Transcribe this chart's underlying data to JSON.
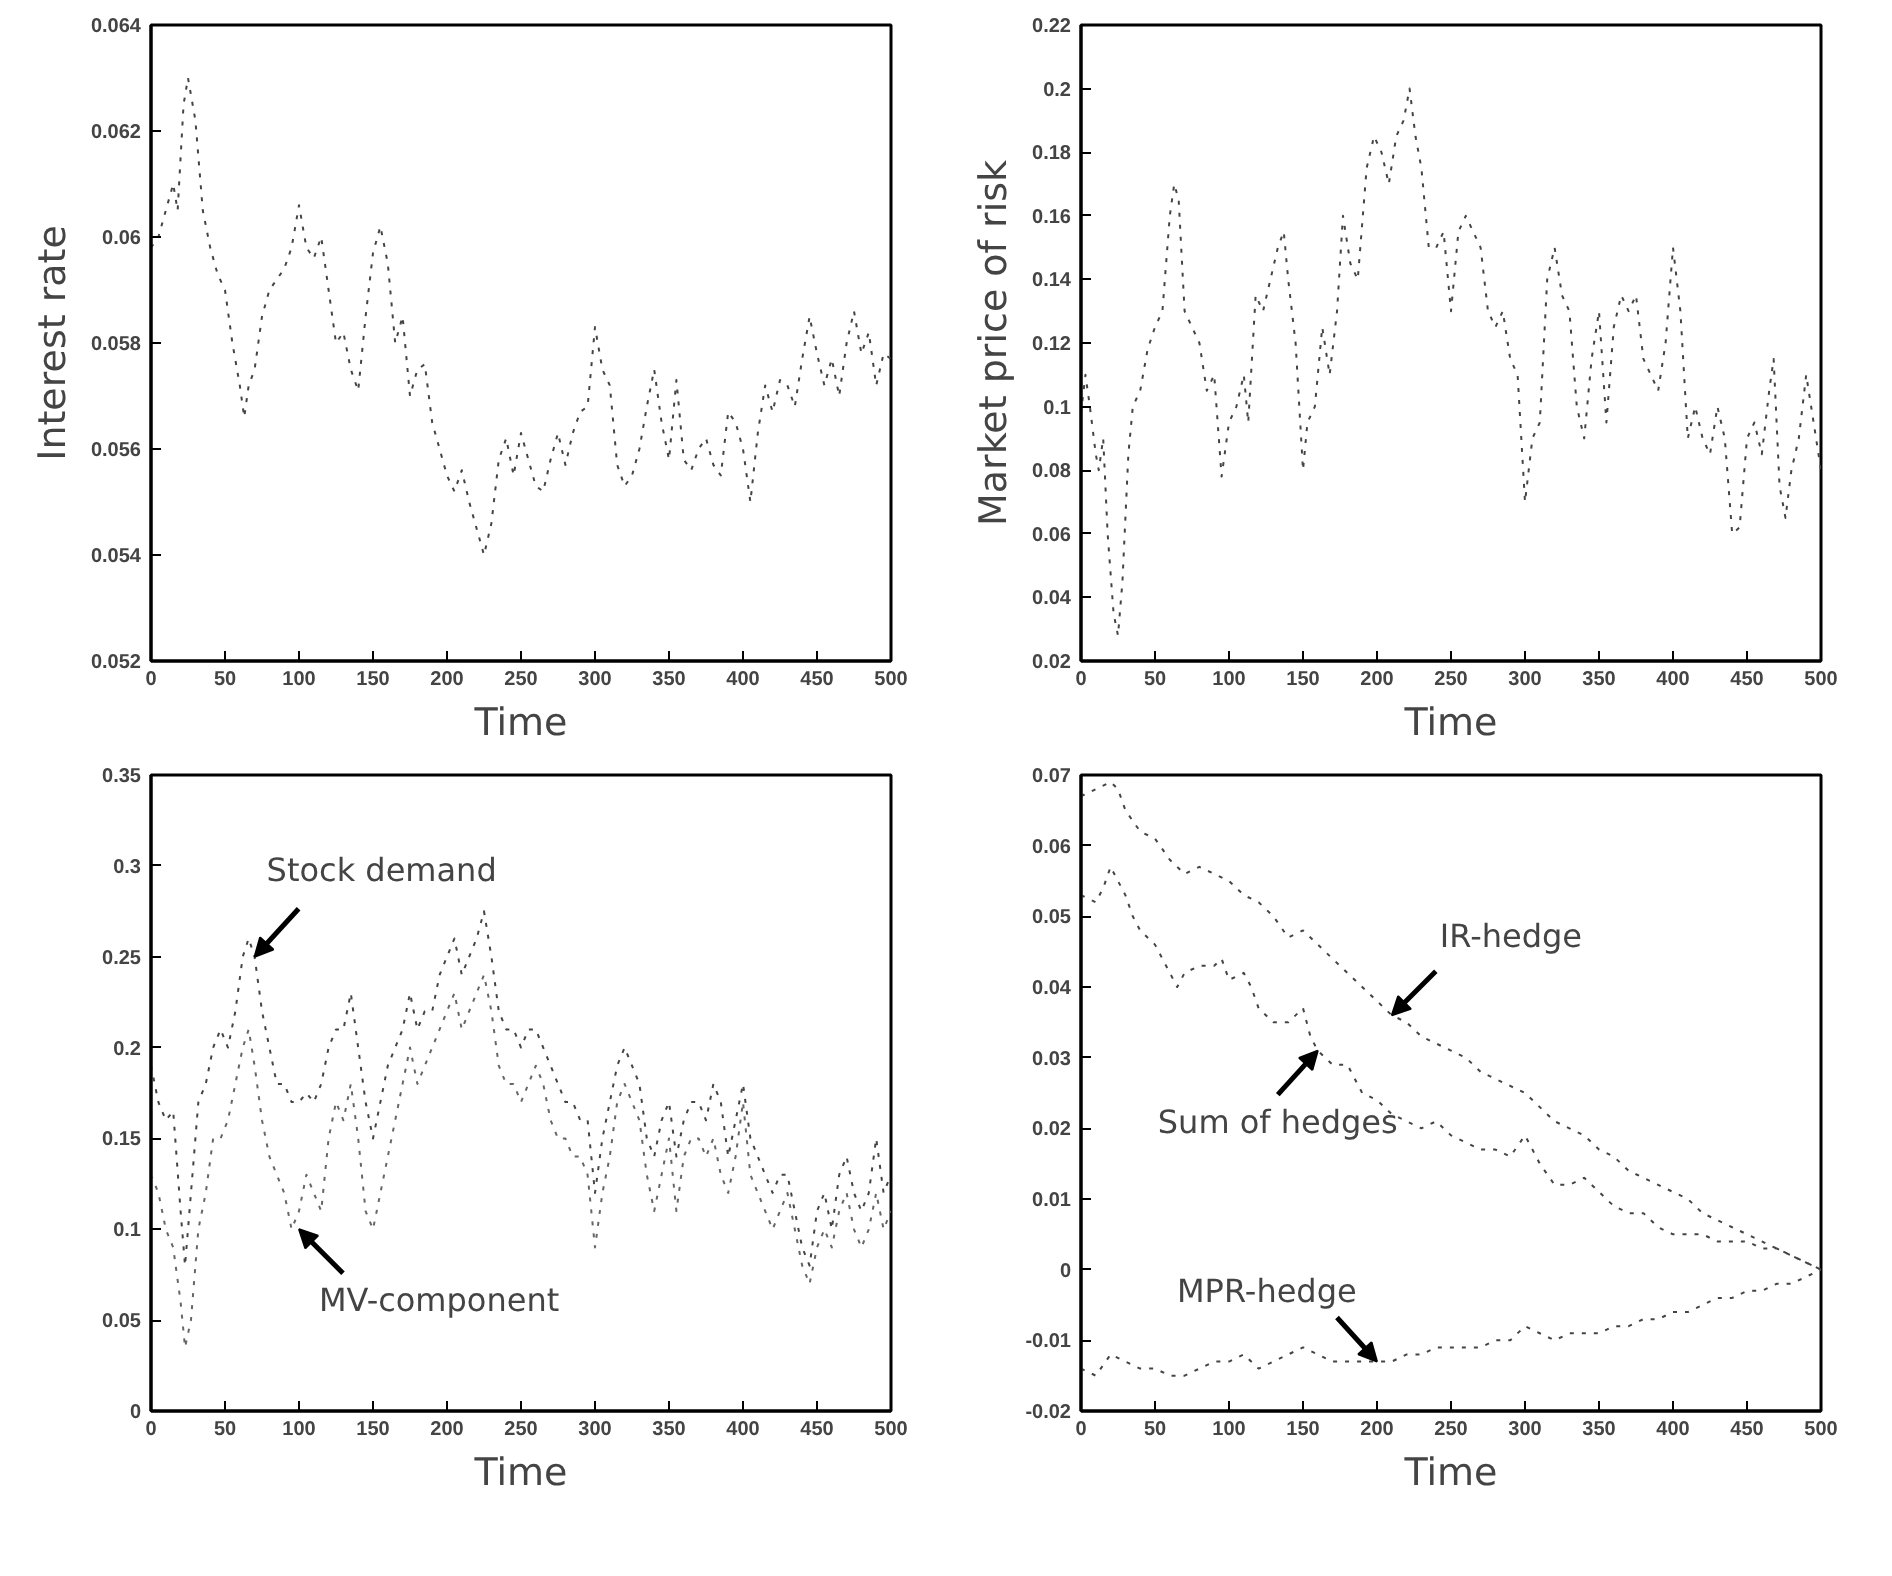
{
  "chart_data": [
    {
      "type": "line",
      "xlabel": "Time",
      "ylabel": "Interest rate",
      "xlim": [
        0,
        500
      ],
      "xticks": [
        0,
        50,
        100,
        150,
        200,
        250,
        300,
        350,
        400,
        450,
        500
      ],
      "ylim": [
        0.052,
        0.064
      ],
      "yticks": [
        0.052,
        0.054,
        0.056,
        0.058,
        0.06,
        0.062,
        0.064
      ],
      "line_style": "dotted",
      "series": [
        {
          "color": "#444444",
          "x": [
            0,
            5,
            10,
            15,
            18,
            22,
            25,
            30,
            35,
            40,
            45,
            50,
            55,
            60,
            63,
            66,
            70,
            75,
            80,
            90,
            95,
            100,
            105,
            110,
            115,
            120,
            125,
            130,
            135,
            140,
            145,
            150,
            155,
            160,
            165,
            170,
            175,
            180,
            185,
            190,
            195,
            200,
            205,
            210,
            215,
            220,
            225,
            230,
            235,
            240,
            245,
            250,
            255,
            260,
            265,
            270,
            275,
            280,
            285,
            290,
            295,
            300,
            305,
            310,
            315,
            320,
            325,
            330,
            335,
            340,
            345,
            350,
            355,
            360,
            365,
            370,
            375,
            380,
            385,
            390,
            395,
            400,
            405,
            410,
            415,
            420,
            425,
            430,
            435,
            440,
            445,
            450,
            455,
            460,
            465,
            470,
            475,
            480,
            485,
            490,
            495,
            500
          ],
          "values": [
            0.0598,
            0.06,
            0.0605,
            0.061,
            0.0605,
            0.0625,
            0.063,
            0.0622,
            0.0605,
            0.0598,
            0.0593,
            0.059,
            0.058,
            0.0572,
            0.0566,
            0.0572,
            0.0575,
            0.0585,
            0.059,
            0.0594,
            0.0598,
            0.0606,
            0.0598,
            0.0596,
            0.06,
            0.059,
            0.058,
            0.0582,
            0.0575,
            0.0571,
            0.0585,
            0.0597,
            0.0602,
            0.0595,
            0.058,
            0.0585,
            0.057,
            0.0575,
            0.0576,
            0.0565,
            0.056,
            0.0555,
            0.0552,
            0.0556,
            0.055,
            0.0545,
            0.054,
            0.0546,
            0.0558,
            0.0562,
            0.0555,
            0.0563,
            0.0558,
            0.0553,
            0.0552,
            0.0558,
            0.0563,
            0.0557,
            0.0563,
            0.0567,
            0.0568,
            0.0583,
            0.0575,
            0.0572,
            0.0557,
            0.0553,
            0.0555,
            0.056,
            0.0568,
            0.0575,
            0.0565,
            0.0558,
            0.0573,
            0.0558,
            0.0556,
            0.056,
            0.0562,
            0.0557,
            0.0555,
            0.0567,
            0.0565,
            0.056,
            0.055,
            0.0563,
            0.0572,
            0.0567,
            0.0573,
            0.0572,
            0.0568,
            0.0577,
            0.0585,
            0.0578,
            0.0572,
            0.0577,
            0.057,
            0.058,
            0.0586,
            0.0578,
            0.0582,
            0.0572,
            0.0578,
            0.0577
          ]
        }
      ]
    },
    {
      "type": "line",
      "xlabel": "Time",
      "ylabel": "Market price of risk",
      "xlim": [
        0,
        500
      ],
      "xticks": [
        0,
        50,
        100,
        150,
        200,
        250,
        300,
        350,
        400,
        450,
        500
      ],
      "ylim": [
        0.02,
        0.22
      ],
      "yticks": [
        0.02,
        0.04,
        0.06,
        0.08,
        0.1,
        0.12,
        0.14,
        0.16,
        0.18,
        0.2,
        0.22
      ],
      "line_style": "dotted",
      "series": [
        {
          "color": "#444444",
          "x": [
            0,
            3,
            6,
            10,
            12,
            15,
            18,
            22,
            25,
            28,
            32,
            35,
            40,
            45,
            50,
            55,
            60,
            63,
            66,
            70,
            75,
            80,
            85,
            90,
            95,
            100,
            105,
            110,
            113,
            118,
            123,
            128,
            133,
            137,
            140,
            145,
            150,
            153,
            158,
            163,
            168,
            173,
            177,
            182,
            187,
            193,
            198,
            203,
            208,
            213,
            218,
            222,
            226,
            230,
            235,
            240,
            245,
            250,
            255,
            260,
            265,
            270,
            275,
            280,
            285,
            290,
            295,
            300,
            305,
            310,
            315,
            320,
            325,
            330,
            335,
            340,
            345,
            350,
            355,
            360,
            365,
            370,
            375,
            380,
            385,
            390,
            395,
            400,
            405,
            410,
            415,
            420,
            425,
            430,
            435,
            440,
            445,
            450,
            455,
            460,
            465,
            468,
            472,
            476,
            480,
            485,
            490,
            495,
            500
          ],
          "values": [
            0.098,
            0.11,
            0.1,
            0.085,
            0.08,
            0.09,
            0.06,
            0.035,
            0.028,
            0.045,
            0.085,
            0.1,
            0.105,
            0.118,
            0.125,
            0.13,
            0.16,
            0.17,
            0.165,
            0.13,
            0.125,
            0.12,
            0.105,
            0.11,
            0.078,
            0.095,
            0.1,
            0.11,
            0.095,
            0.135,
            0.13,
            0.14,
            0.15,
            0.155,
            0.14,
            0.12,
            0.08,
            0.095,
            0.1,
            0.125,
            0.11,
            0.13,
            0.16,
            0.145,
            0.14,
            0.175,
            0.185,
            0.18,
            0.17,
            0.185,
            0.19,
            0.2,
            0.185,
            0.175,
            0.15,
            0.15,
            0.155,
            0.13,
            0.155,
            0.16,
            0.155,
            0.15,
            0.13,
            0.125,
            0.13,
            0.115,
            0.11,
            0.07,
            0.09,
            0.095,
            0.14,
            0.15,
            0.135,
            0.13,
            0.1,
            0.09,
            0.115,
            0.13,
            0.095,
            0.125,
            0.135,
            0.13,
            0.135,
            0.115,
            0.11,
            0.105,
            0.12,
            0.15,
            0.13,
            0.09,
            0.1,
            0.09,
            0.085,
            0.1,
            0.09,
            0.06,
            0.062,
            0.09,
            0.095,
            0.085,
            0.105,
            0.115,
            0.075,
            0.065,
            0.08,
            0.09,
            0.11,
            0.095,
            0.08
          ]
        }
      ]
    },
    {
      "type": "line",
      "xlabel": "Time",
      "xlim": [
        0,
        500
      ],
      "xticks": [
        0,
        50,
        100,
        150,
        200,
        250,
        300,
        350,
        400,
        450,
        500
      ],
      "ylim": [
        0,
        0.35
      ],
      "yticks": [
        0,
        0.05,
        0.1,
        0.15,
        0.2,
        0.25,
        0.3,
        0.35
      ],
      "line_style": "dotted",
      "annotations": [
        {
          "text": "Stock demand",
          "x": 70,
          "y": 0.25
        },
        {
          "text": "MV-component",
          "x": 100,
          "y": 0.1
        }
      ],
      "series": [
        {
          "color": "#444444",
          "x": [
            0,
            5,
            10,
            15,
            20,
            23,
            27,
            32,
            37,
            42,
            47,
            52,
            57,
            62,
            66,
            70,
            75,
            80,
            85,
            90,
            95,
            100,
            105,
            110,
            115,
            120,
            125,
            130,
            135,
            140,
            145,
            150,
            155,
            160,
            165,
            170,
            175,
            180,
            185,
            190,
            195,
            200,
            205,
            210,
            215,
            220,
            225,
            230,
            235,
            240,
            245,
            250,
            255,
            260,
            265,
            270,
            275,
            280,
            285,
            290,
            295,
            300,
            305,
            310,
            315,
            320,
            325,
            330,
            335,
            340,
            345,
            350,
            355,
            360,
            365,
            370,
            375,
            380,
            385,
            390,
            395,
            400,
            405,
            410,
            415,
            420,
            425,
            430,
            435,
            440,
            445,
            450,
            455,
            460,
            465,
            470,
            475,
            480,
            485,
            490,
            495,
            500
          ],
          "values": [
            0.19,
            0.17,
            0.16,
            0.165,
            0.11,
            0.08,
            0.12,
            0.17,
            0.18,
            0.2,
            0.21,
            0.2,
            0.22,
            0.25,
            0.26,
            0.25,
            0.22,
            0.2,
            0.18,
            0.18,
            0.17,
            0.17,
            0.175,
            0.17,
            0.18,
            0.2,
            0.21,
            0.21,
            0.23,
            0.2,
            0.17,
            0.15,
            0.17,
            0.19,
            0.2,
            0.21,
            0.23,
            0.21,
            0.22,
            0.22,
            0.24,
            0.25,
            0.26,
            0.24,
            0.25,
            0.26,
            0.275,
            0.25,
            0.22,
            0.21,
            0.21,
            0.2,
            0.21,
            0.21,
            0.2,
            0.19,
            0.18,
            0.17,
            0.17,
            0.16,
            0.16,
            0.12,
            0.15,
            0.17,
            0.19,
            0.2,
            0.19,
            0.18,
            0.15,
            0.14,
            0.16,
            0.17,
            0.14,
            0.16,
            0.17,
            0.17,
            0.16,
            0.18,
            0.17,
            0.14,
            0.16,
            0.18,
            0.15,
            0.14,
            0.13,
            0.12,
            0.13,
            0.13,
            0.11,
            0.09,
            0.08,
            0.11,
            0.12,
            0.1,
            0.13,
            0.14,
            0.12,
            0.11,
            0.12,
            0.15,
            0.12,
            0.13
          ]
        },
        {
          "color": "#666666",
          "x": [
            0,
            5,
            10,
            15,
            20,
            23,
            27,
            32,
            37,
            42,
            47,
            52,
            57,
            62,
            66,
            70,
            75,
            80,
            85,
            90,
            95,
            100,
            105,
            110,
            115,
            120,
            125,
            130,
            135,
            140,
            145,
            150,
            155,
            160,
            165,
            170,
            175,
            180,
            185,
            190,
            195,
            200,
            205,
            210,
            215,
            220,
            225,
            230,
            235,
            240,
            245,
            250,
            255,
            260,
            265,
            270,
            275,
            280,
            285,
            290,
            295,
            300,
            305,
            310,
            315,
            320,
            325,
            330,
            335,
            340,
            345,
            350,
            355,
            360,
            365,
            370,
            375,
            380,
            385,
            390,
            395,
            400,
            405,
            410,
            415,
            420,
            425,
            430,
            435,
            440,
            445,
            450,
            455,
            460,
            465,
            470,
            475,
            480,
            485,
            490,
            495,
            500
          ],
          "values": [
            0.13,
            0.12,
            0.1,
            0.09,
            0.06,
            0.035,
            0.05,
            0.1,
            0.12,
            0.15,
            0.15,
            0.16,
            0.18,
            0.2,
            0.21,
            0.19,
            0.16,
            0.14,
            0.13,
            0.12,
            0.1,
            0.11,
            0.13,
            0.12,
            0.11,
            0.15,
            0.17,
            0.16,
            0.18,
            0.15,
            0.11,
            0.1,
            0.12,
            0.14,
            0.16,
            0.18,
            0.2,
            0.18,
            0.19,
            0.2,
            0.21,
            0.22,
            0.23,
            0.21,
            0.22,
            0.23,
            0.24,
            0.22,
            0.19,
            0.18,
            0.18,
            0.17,
            0.18,
            0.19,
            0.18,
            0.16,
            0.15,
            0.15,
            0.14,
            0.14,
            0.13,
            0.09,
            0.12,
            0.14,
            0.17,
            0.18,
            0.17,
            0.16,
            0.13,
            0.11,
            0.13,
            0.15,
            0.11,
            0.14,
            0.15,
            0.15,
            0.14,
            0.15,
            0.13,
            0.12,
            0.14,
            0.17,
            0.13,
            0.12,
            0.11,
            0.1,
            0.11,
            0.12,
            0.1,
            0.08,
            0.07,
            0.09,
            0.1,
            0.09,
            0.11,
            0.12,
            0.1,
            0.09,
            0.1,
            0.12,
            0.1,
            0.11
          ]
        }
      ]
    },
    {
      "type": "line",
      "xlabel": "Time",
      "xlim": [
        0,
        500
      ],
      "xticks": [
        0,
        50,
        100,
        150,
        200,
        250,
        300,
        350,
        400,
        450,
        500
      ],
      "ylim": [
        -0.02,
        0.07
      ],
      "yticks": [
        -0.02,
        -0.01,
        0,
        0.01,
        0.02,
        0.03,
        0.04,
        0.05,
        0.06,
        0.07
      ],
      "line_style": "dotted",
      "annotations": [
        {
          "text": "IR-hedge",
          "x": 210,
          "y": 0.036
        },
        {
          "text": "Sum of hedges",
          "x": 160,
          "y": 0.031
        },
        {
          "text": "MPR-hedge",
          "x": 200,
          "y": -0.013
        }
      ],
      "series": [
        {
          "color": "#444444",
          "x": [
            0,
            10,
            20,
            25,
            30,
            40,
            50,
            60,
            70,
            80,
            90,
            100,
            110,
            120,
            130,
            140,
            150,
            160,
            170,
            180,
            190,
            200,
            210,
            220,
            230,
            240,
            250,
            260,
            270,
            280,
            290,
            300,
            310,
            320,
            330,
            340,
            350,
            360,
            370,
            380,
            390,
            400,
            410,
            420,
            430,
            440,
            450,
            460,
            470,
            480,
            490,
            500
          ],
          "values": [
            0.067,
            0.068,
            0.069,
            0.068,
            0.065,
            0.062,
            0.061,
            0.058,
            0.056,
            0.057,
            0.056,
            0.055,
            0.053,
            0.052,
            0.05,
            0.047,
            0.048,
            0.046,
            0.044,
            0.042,
            0.04,
            0.038,
            0.036,
            0.035,
            0.033,
            0.032,
            0.031,
            0.03,
            0.028,
            0.027,
            0.026,
            0.025,
            0.023,
            0.021,
            0.02,
            0.019,
            0.017,
            0.016,
            0.014,
            0.013,
            0.012,
            0.011,
            0.01,
            0.008,
            0.007,
            0.006,
            0.005,
            0.004,
            0.003,
            0.002,
            0.001,
            0
          ]
        },
        {
          "color": "#444444",
          "x": [
            0,
            10,
            15,
            20,
            25,
            30,
            35,
            40,
            50,
            60,
            65,
            70,
            80,
            90,
            95,
            100,
            110,
            115,
            120,
            130,
            140,
            150,
            155,
            160,
            170,
            180,
            190,
            200,
            210,
            220,
            230,
            240,
            250,
            260,
            270,
            280,
            290,
            300,
            310,
            320,
            330,
            340,
            350,
            360,
            370,
            380,
            390,
            400,
            410,
            420,
            430,
            440,
            450,
            460,
            470,
            480,
            490,
            500
          ],
          "values": [
            0.053,
            0.052,
            0.054,
            0.057,
            0.055,
            0.053,
            0.05,
            0.048,
            0.046,
            0.042,
            0.04,
            0.042,
            0.043,
            0.043,
            0.044,
            0.041,
            0.042,
            0.04,
            0.037,
            0.035,
            0.035,
            0.037,
            0.033,
            0.031,
            0.029,
            0.029,
            0.025,
            0.024,
            0.022,
            0.021,
            0.02,
            0.021,
            0.019,
            0.018,
            0.017,
            0.017,
            0.016,
            0.019,
            0.015,
            0.012,
            0.012,
            0.013,
            0.011,
            0.009,
            0.008,
            0.008,
            0.006,
            0.005,
            0.005,
            0.005,
            0.004,
            0.004,
            0.004,
            0.003,
            0.003,
            0.002,
            0.001,
            0
          ]
        },
        {
          "color": "#444444",
          "x": [
            0,
            10,
            20,
            30,
            40,
            50,
            60,
            70,
            80,
            90,
            100,
            110,
            120,
            130,
            140,
            150,
            160,
            170,
            180,
            190,
            200,
            210,
            220,
            230,
            240,
            250,
            260,
            270,
            280,
            290,
            300,
            310,
            320,
            330,
            340,
            350,
            360,
            370,
            380,
            390,
            400,
            410,
            420,
            430,
            440,
            450,
            460,
            470,
            480,
            490,
            500
          ],
          "values": [
            -0.014,
            -0.015,
            -0.012,
            -0.013,
            -0.014,
            -0.014,
            -0.015,
            -0.015,
            -0.014,
            -0.013,
            -0.013,
            -0.012,
            -0.014,
            -0.013,
            -0.012,
            -0.011,
            -0.012,
            -0.013,
            -0.013,
            -0.013,
            -0.013,
            -0.013,
            -0.012,
            -0.012,
            -0.011,
            -0.011,
            -0.011,
            -0.011,
            -0.01,
            -0.01,
            -0.008,
            -0.009,
            -0.01,
            -0.009,
            -0.009,
            -0.009,
            -0.008,
            -0.008,
            -0.007,
            -0.007,
            -0.006,
            -0.006,
            -0.005,
            -0.004,
            -0.004,
            -0.003,
            -0.003,
            -0.002,
            -0.002,
            -0.001,
            0
          ]
        }
      ]
    }
  ]
}
